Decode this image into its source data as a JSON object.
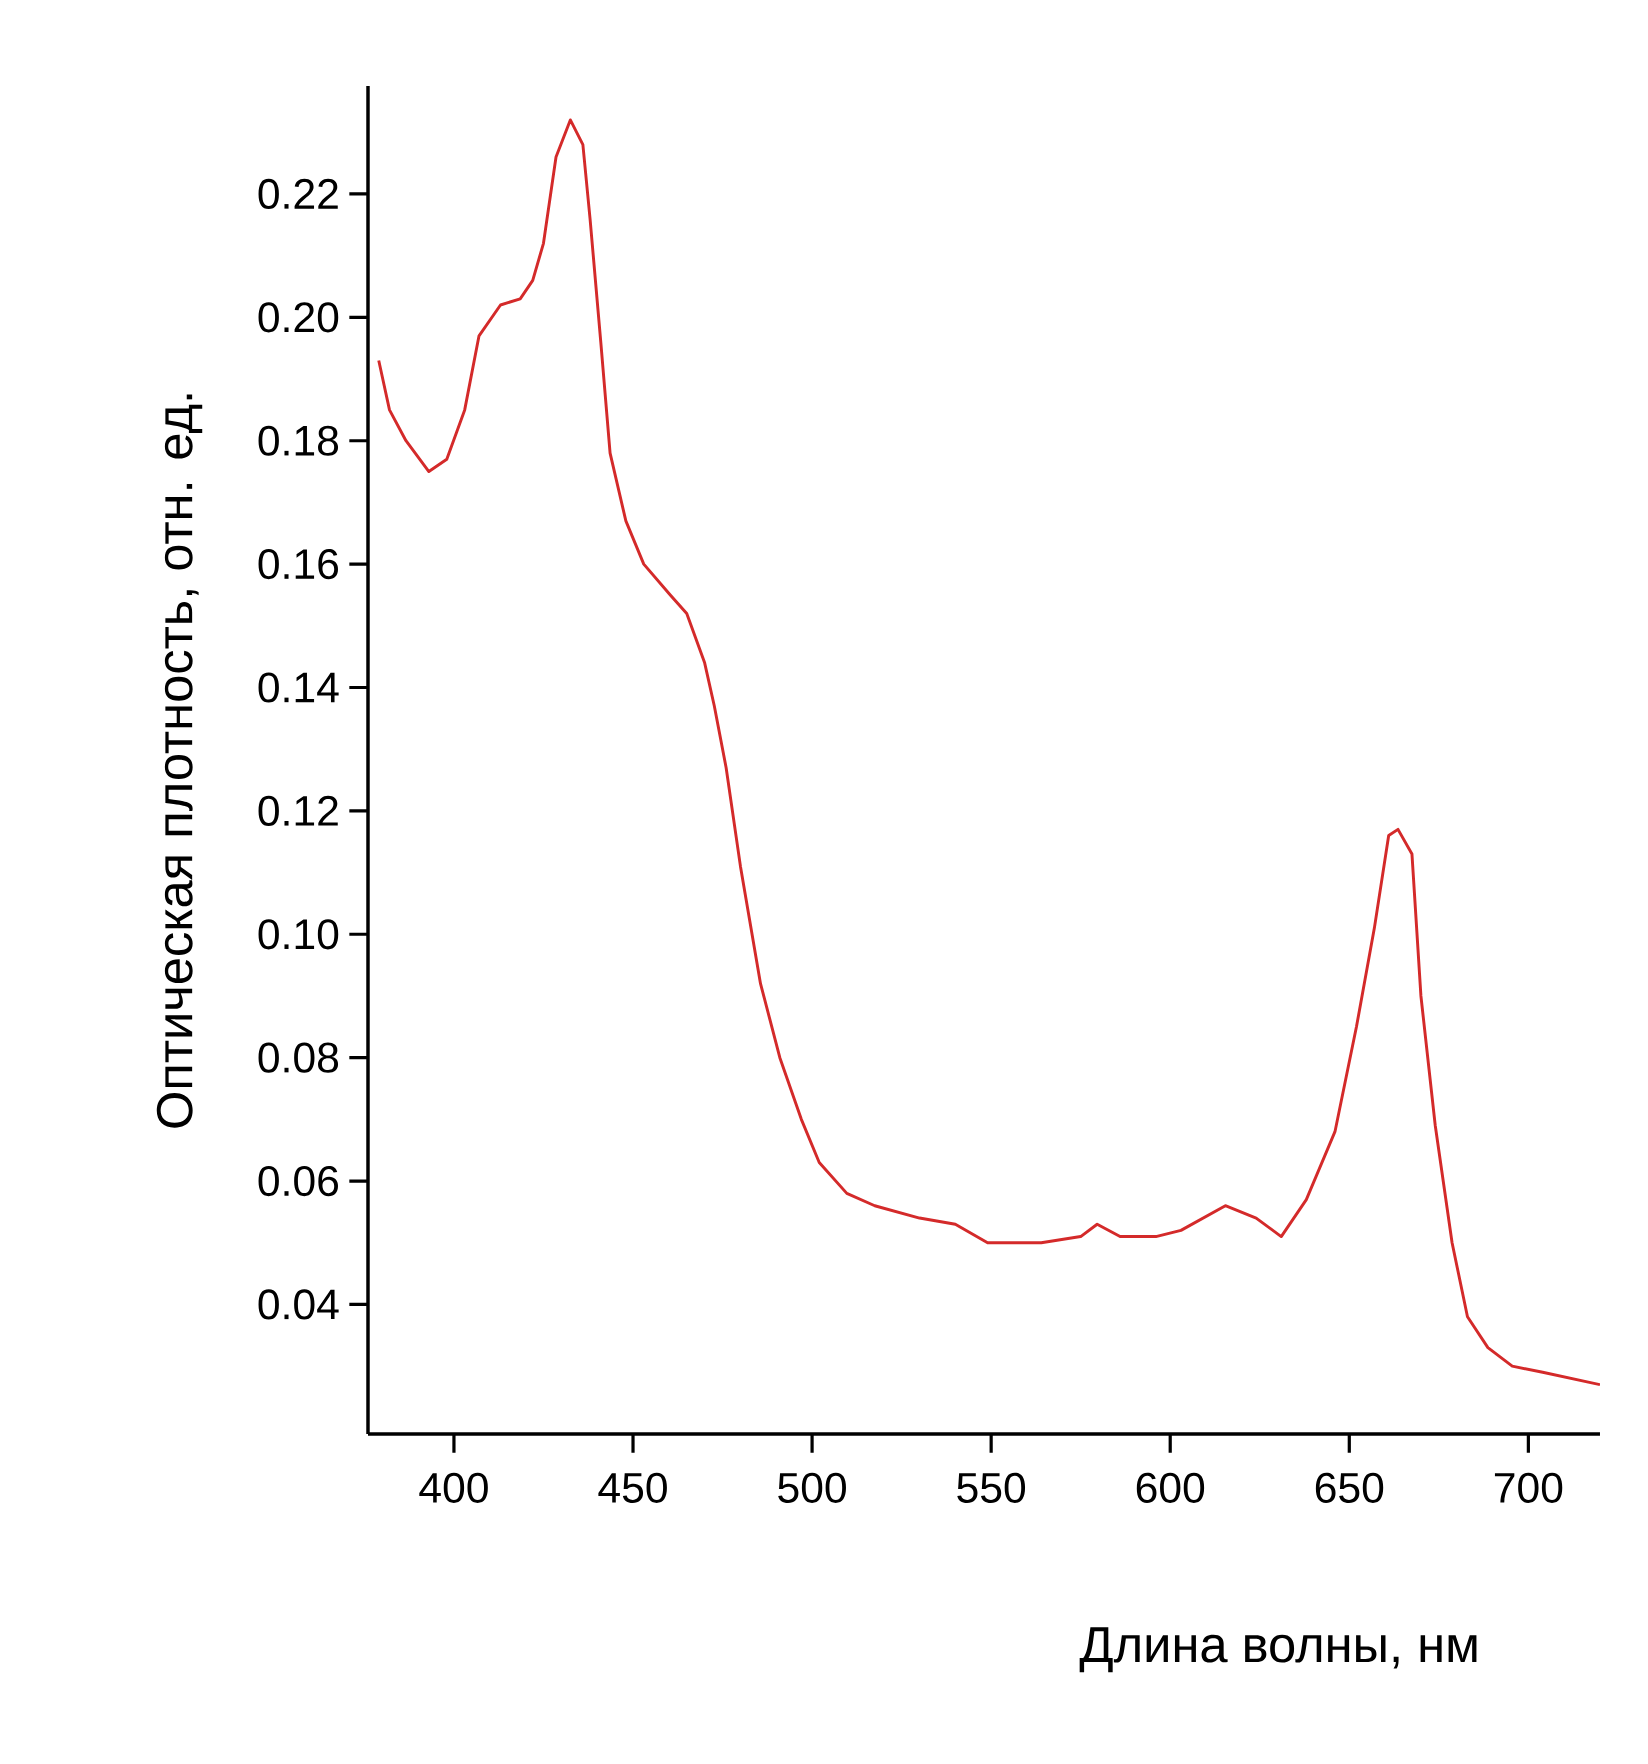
{
  "chart_data": {
    "type": "line",
    "xlabel": "Длина волны, нм",
    "ylabel": "Оптическая плотность, отн. ед.",
    "xlim": [
      376,
      720
    ],
    "ylim": [
      0.019,
      0.2375
    ],
    "xticks": [
      400,
      450,
      500,
      550,
      600,
      650,
      700
    ],
    "yticks": [
      {
        "value": 0.04,
        "label": "0.04"
      },
      {
        "value": 0.06,
        "label": "0.06"
      },
      {
        "value": 0.08,
        "label": "0.08"
      },
      {
        "value": 0.1,
        "label": "0.10"
      },
      {
        "value": 0.12,
        "label": "0.12"
      },
      {
        "value": 0.14,
        "label": "0.14"
      },
      {
        "value": 0.16,
        "label": "0.16"
      },
      {
        "value": 0.18,
        "label": "0.18"
      },
      {
        "value": 0.2,
        "label": "0.20"
      },
      {
        "value": 0.22,
        "label": "0.22"
      }
    ],
    "series": [
      {
        "color": "#d42a2a",
        "x": [
          379,
          382,
          386.6,
          393,
          398,
          403,
          407,
          413,
          418.5,
          422,
          425,
          428.5,
          432.5,
          436,
          438,
          441,
          443.6,
          448,
          453,
          460.4,
          465,
          470,
          472.7,
          476,
          480,
          485.6,
          491,
          497,
          502,
          509.7,
          517.5,
          530,
          540,
          549,
          552.8,
          564,
          575,
          579.6,
          586,
          596,
          603,
          615.4,
          624,
          631,
          638,
          646,
          652,
          657,
          661,
          663.6,
          667.5,
          670,
          674,
          678.7,
          683,
          688.7,
          695.5,
          704,
          720
        ],
        "values": [
          0.193,
          0.185,
          0.18,
          0.175,
          0.177,
          0.185,
          0.197,
          0.202,
          0.203,
          0.206,
          0.212,
          0.226,
          0.232,
          0.228,
          0.216,
          0.196,
          0.178,
          0.167,
          0.16,
          0.155,
          0.152,
          0.144,
          0.137,
          0.127,
          0.111,
          0.092,
          0.08,
          0.07,
          0.063,
          0.058,
          0.056,
          0.054,
          0.053,
          0.05,
          0.05,
          0.05,
          0.051,
          0.053,
          0.051,
          0.051,
          0.052,
          0.056,
          0.054,
          0.051,
          0.057,
          0.068,
          0.085,
          0.101,
          0.116,
          0.117,
          0.113,
          0.09,
          0.069,
          0.05,
          0.038,
          0.033,
          0.03,
          0.029,
          0.027
        ]
      }
    ]
  }
}
